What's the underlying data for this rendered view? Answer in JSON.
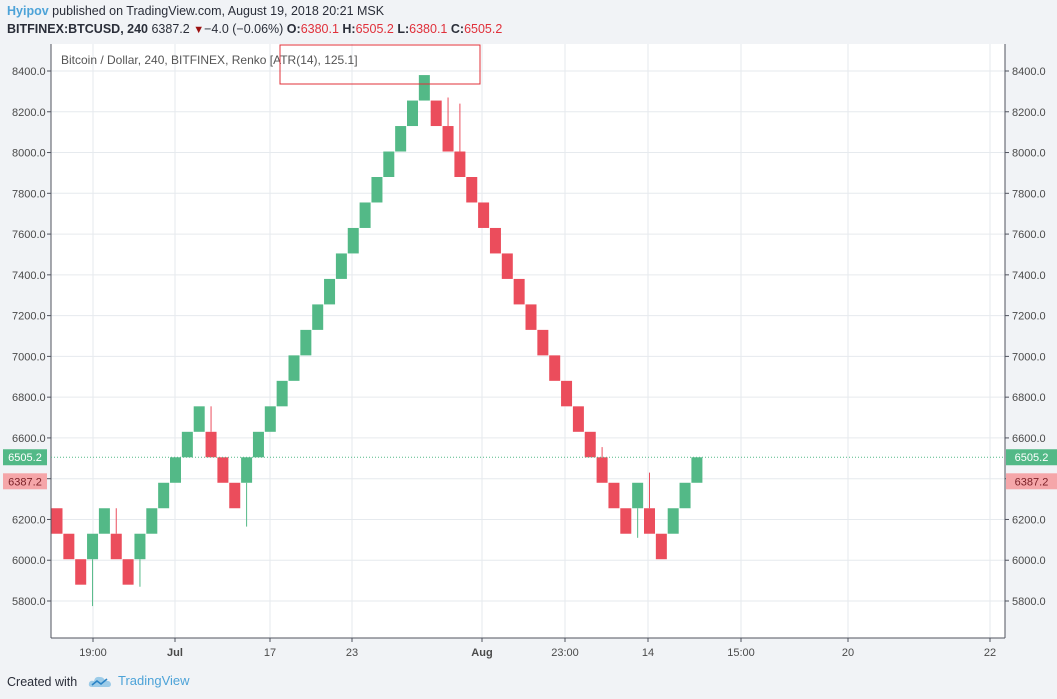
{
  "header": {
    "author": "Hyipov",
    "published": " published on TradingView.com, August 19, 2018 20:21 MSK",
    "symbol": "BITFINEX:BTCUSD, 240",
    "last": "6387.2",
    "change_arrow": "▼",
    "change": "−4.0 (−0.06%)",
    "o_label": "O:",
    "o_value": "6380.1",
    "h_label": "H:",
    "h_value": "6505.2",
    "l_label": "L:",
    "l_value": "6380.1",
    "c_label": "C:",
    "c_value": "6505.2"
  },
  "footer": {
    "created_with": "Created with",
    "brand": "TradingView"
  },
  "colors": {
    "up": "#53b987",
    "down": "#eb4d5c",
    "grid": "#e6eaee",
    "axis_text": "#4a4a4a",
    "last_price_bg": "#53b987",
    "prev_price_bg": "#f5a6a9",
    "annotation_border": "#e0303a"
  },
  "chart_data": {
    "type": "renko",
    "title": "Bitcoin / Dollar, 240, BITFINEX, Renko [ATR(14), 125.1]",
    "brick_size": 125.1,
    "ylim": [
      5620,
      8560
    ],
    "y_ticks": [
      5800,
      6000,
      6200,
      6400,
      6600,
      6800,
      7000,
      7200,
      7400,
      7600,
      7800,
      8000,
      8200,
      8400
    ],
    "x_ticks": [
      "19:00",
      "Jul",
      "17",
      "23",
      "Aug",
      "23:00",
      "14",
      "15:00",
      "20",
      "22"
    ],
    "x_ticks_bold": [
      "Jul",
      "Aug"
    ],
    "price_labels": {
      "last": "6505.2",
      "previous": "6387.2"
    },
    "bricks": [
      {
        "dir": "down",
        "open": 6255,
        "close": 6130
      },
      {
        "dir": "down",
        "open": 6130,
        "close": 6005
      },
      {
        "dir": "down",
        "open": 6005,
        "close": 5880
      },
      {
        "dir": "up",
        "open": 6005,
        "close": 6130,
        "wick_low": 5775
      },
      {
        "dir": "up",
        "open": 6130,
        "close": 6255
      },
      {
        "dir": "down",
        "open": 6130,
        "close": 6005,
        "wick_high": 6255
      },
      {
        "dir": "down",
        "open": 6005,
        "close": 5880
      },
      {
        "dir": "up",
        "open": 6005,
        "close": 6130,
        "wick_low": 5870
      },
      {
        "dir": "up",
        "open": 6130,
        "close": 6255
      },
      {
        "dir": "up",
        "open": 6255,
        "close": 6380
      },
      {
        "dir": "up",
        "open": 6380,
        "close": 6505
      },
      {
        "dir": "up",
        "open": 6505,
        "close": 6630
      },
      {
        "dir": "up",
        "open": 6630,
        "close": 6755
      },
      {
        "dir": "down",
        "open": 6630,
        "close": 6505,
        "wick_high": 6755
      },
      {
        "dir": "down",
        "open": 6505,
        "close": 6380
      },
      {
        "dir": "down",
        "open": 6380,
        "close": 6255
      },
      {
        "dir": "up",
        "open": 6380,
        "close": 6505,
        "wick_low": 6165
      },
      {
        "dir": "up",
        "open": 6505,
        "close": 6630
      },
      {
        "dir": "up",
        "open": 6630,
        "close": 6755
      },
      {
        "dir": "up",
        "open": 6755,
        "close": 6880
      },
      {
        "dir": "up",
        "open": 6880,
        "close": 7005
      },
      {
        "dir": "up",
        "open": 7005,
        "close": 7130
      },
      {
        "dir": "up",
        "open": 7130,
        "close": 7255
      },
      {
        "dir": "up",
        "open": 7255,
        "close": 7380
      },
      {
        "dir": "up",
        "open": 7380,
        "close": 7505
      },
      {
        "dir": "up",
        "open": 7505,
        "close": 7630
      },
      {
        "dir": "up",
        "open": 7630,
        "close": 7755
      },
      {
        "dir": "up",
        "open": 7755,
        "close": 7880
      },
      {
        "dir": "up",
        "open": 7880,
        "close": 8005
      },
      {
        "dir": "up",
        "open": 8005,
        "close": 8130
      },
      {
        "dir": "up",
        "open": 8130,
        "close": 8255
      },
      {
        "dir": "up",
        "open": 8255,
        "close": 8380
      },
      {
        "dir": "down",
        "open": 8255,
        "close": 8130
      },
      {
        "dir": "down",
        "open": 8130,
        "close": 8005,
        "wick_high": 8270
      },
      {
        "dir": "down",
        "open": 8005,
        "close": 7880,
        "wick_high": 8240
      },
      {
        "dir": "down",
        "open": 7880,
        "close": 7755
      },
      {
        "dir": "down",
        "open": 7755,
        "close": 7630
      },
      {
        "dir": "down",
        "open": 7630,
        "close": 7505
      },
      {
        "dir": "down",
        "open": 7505,
        "close": 7380
      },
      {
        "dir": "down",
        "open": 7380,
        "close": 7255
      },
      {
        "dir": "down",
        "open": 7255,
        "close": 7130
      },
      {
        "dir": "down",
        "open": 7130,
        "close": 7005
      },
      {
        "dir": "down",
        "open": 7005,
        "close": 6880
      },
      {
        "dir": "down",
        "open": 6880,
        "close": 6755
      },
      {
        "dir": "down",
        "open": 6755,
        "close": 6630
      },
      {
        "dir": "down",
        "open": 6630,
        "close": 6505
      },
      {
        "dir": "down",
        "open": 6505,
        "close": 6380,
        "wick_high": 6555
      },
      {
        "dir": "down",
        "open": 6380,
        "close": 6255
      },
      {
        "dir": "down",
        "open": 6255,
        "close": 6130
      },
      {
        "dir": "up",
        "open": 6255,
        "close": 6380,
        "wick_low": 6110
      },
      {
        "dir": "down",
        "open": 6255,
        "close": 6130,
        "wick_high": 6430
      },
      {
        "dir": "down",
        "open": 6130,
        "close": 6005
      },
      {
        "dir": "up",
        "open": 6130,
        "close": 6255
      },
      {
        "dir": "up",
        "open": 6255,
        "close": 6380
      },
      {
        "dir": "up",
        "open": 6380,
        "close": 6505
      }
    ]
  }
}
